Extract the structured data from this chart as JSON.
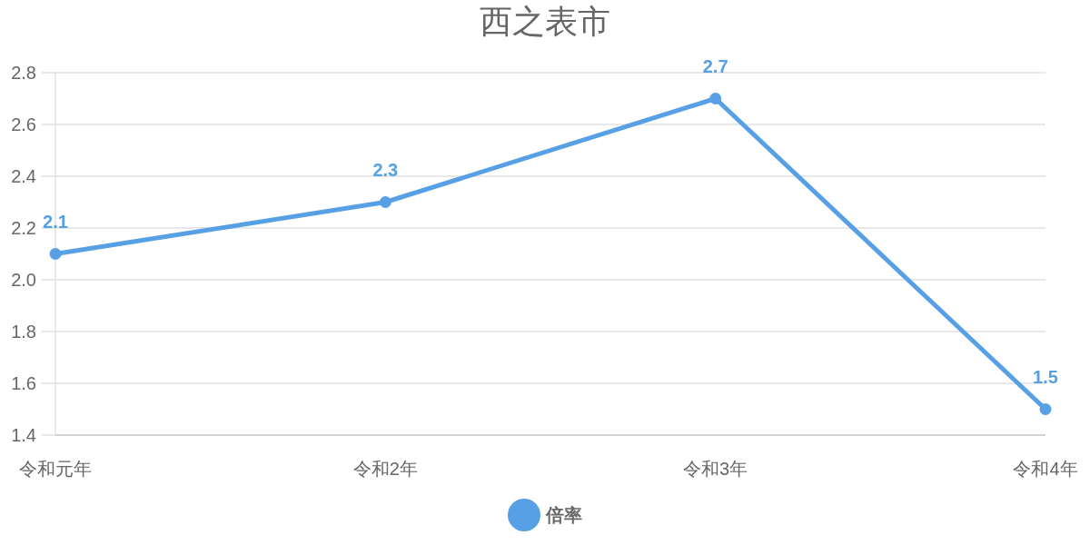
{
  "chart_data": {
    "type": "line",
    "title": "西之表市",
    "categories": [
      "令和元年",
      "令和2年",
      "令和3年",
      "令和4年"
    ],
    "series": [
      {
        "name": "倍率",
        "color": "#57a0e5",
        "values": [
          2.1,
          2.3,
          2.7,
          1.5
        ]
      }
    ],
    "ylim": [
      1.4,
      2.8
    ],
    "yticks": [
      1.4,
      1.6,
      1.8,
      {
        "value": 2,
        "label": "2.0"
      },
      2.2,
      2.4,
      2.6,
      2.8
    ],
    "grid": "y",
    "legend": "bottom",
    "marker": "circle",
    "data_labels": true
  }
}
